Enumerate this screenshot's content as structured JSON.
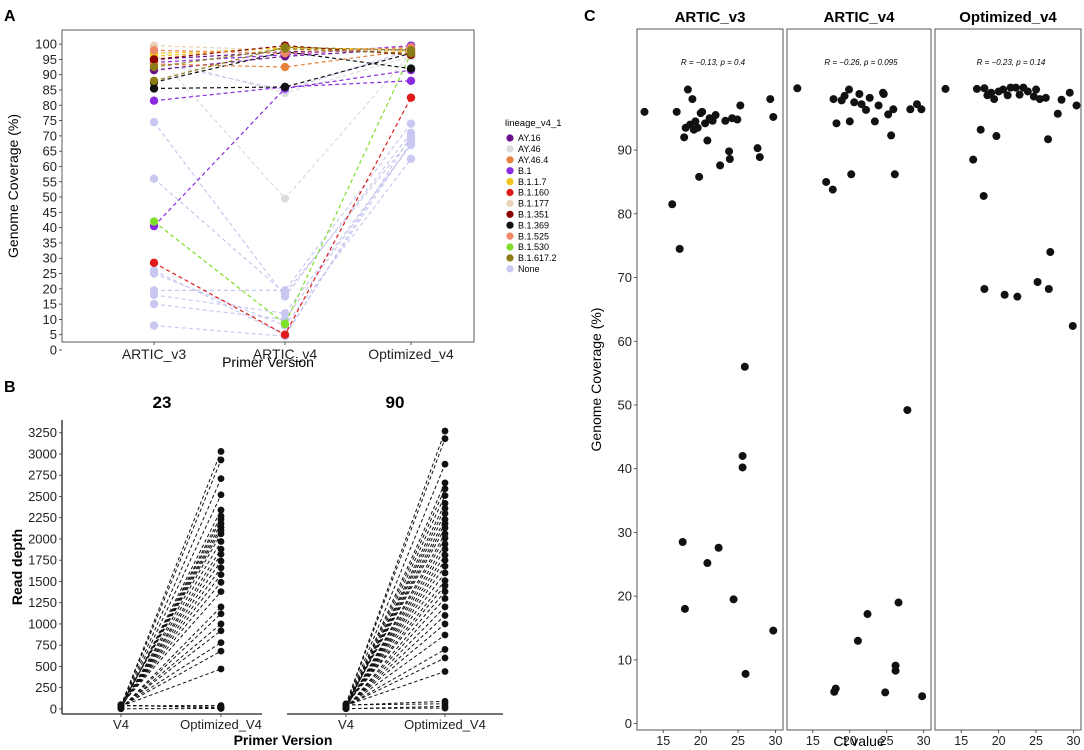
{
  "chart_data": [
    {
      "panel": "A",
      "type": "line",
      "xlabel": "Primer Version",
      "ylabel": "Genome Coverage (%)",
      "categories": [
        "ARTIC_v3",
        "ARTIC_v4",
        "Optimized_v4"
      ],
      "yticks": [
        0,
        5,
        10,
        15,
        20,
        25,
        30,
        35,
        40,
        45,
        50,
        55,
        60,
        65,
        70,
        75,
        80,
        85,
        90,
        95,
        100
      ],
      "ylim": [
        0,
        102
      ],
      "legend_title": "lineage_v4_1",
      "legend": [
        {
          "name": "AY.16",
          "color": "#6a0f8e"
        },
        {
          "name": "AY.46",
          "color": "#dcdcdc"
        },
        {
          "name": "AY.46.4",
          "color": "#e6823c"
        },
        {
          "name": "B.1",
          "color": "#8a2be2"
        },
        {
          "name": "B.1.1.7",
          "color": "#f0c419"
        },
        {
          "name": "B.1.160",
          "color": "#e01a1a"
        },
        {
          "name": "B.1.177",
          "color": "#e8d2b8"
        },
        {
          "name": "B.1.351",
          "color": "#8b0000"
        },
        {
          "name": "B.1.369",
          "color": "#111111"
        },
        {
          "name": "B.1.525",
          "color": "#ee8866"
        },
        {
          "name": "B.1.530",
          "color": "#7ddf2a"
        },
        {
          "name": "B.1.617.2",
          "color": "#8b7d17"
        },
        {
          "name": "None",
          "color": "#c8c8f0"
        }
      ],
      "series": [
        {
          "lineage": "B.1",
          "values": [
            40.5,
            85.5,
            91.5
          ]
        },
        {
          "lineage": "B.1",
          "values": [
            81.5,
            86.0,
            88.0
          ]
        },
        {
          "lineage": "B.1",
          "values": [
            94.0,
            96.5,
            99.5
          ]
        },
        {
          "lineage": "B.1.530",
          "values": [
            42.0,
            8.5,
            97.0
          ]
        },
        {
          "lineage": "B.1.160",
          "values": [
            28.5,
            5.0,
            82.5
          ]
        },
        {
          "lineage": "B.1.369",
          "values": [
            85.5,
            86.0,
            97.0
          ]
        },
        {
          "lineage": "B.1.369",
          "values": [
            87.5,
            97.5,
            92.0
          ]
        },
        {
          "lineage": "AY.16",
          "values": [
            91.5,
            96.0,
            98.5
          ]
        },
        {
          "lineage": "AY.16",
          "values": [
            95.0,
            97.5,
            98.0
          ]
        },
        {
          "lineage": "AY.46.4",
          "values": [
            93.5,
            92.5,
            98.0
          ]
        },
        {
          "lineage": "B.1.1.7",
          "values": [
            97.0,
            98.5,
            98.5
          ]
        },
        {
          "lineage": "B.1.1.7",
          "values": [
            96.0,
            99.0,
            97.5
          ]
        },
        {
          "lineage": "B.1.177",
          "values": [
            99.5,
            98.0,
            98.0
          ]
        },
        {
          "lineage": "B.1.351",
          "values": [
            95.0,
            99.5,
            96.5
          ]
        },
        {
          "lineage": "B.1.525",
          "values": [
            98.0,
            97.0,
            99.0
          ]
        },
        {
          "lineage": "B.1.617.2",
          "values": [
            88.0,
            99.0,
            98.0
          ]
        },
        {
          "lineage": "B.1.617.2",
          "values": [
            92.5,
            98.5,
            97.0
          ]
        },
        {
          "lineage": "AY.46",
          "values": [
            97.5,
            49.5,
            97.0
          ]
        },
        {
          "lineage": "AY.46",
          "values": [
            95.5,
            84.0,
            96.0
          ]
        },
        {
          "lineage": "None",
          "values": [
            74.5,
            17.5,
            71.0
          ]
        },
        {
          "lineage": "None",
          "values": [
            56.0,
            18.5,
            69.0
          ]
        },
        {
          "lineage": "None",
          "values": [
            26.0,
            5.0,
            68.0
          ]
        },
        {
          "lineage": "None",
          "values": [
            25.0,
            8.0,
            62.5
          ]
        },
        {
          "lineage": "None",
          "values": [
            19.5,
            19.5,
            74.0
          ]
        },
        {
          "lineage": "None",
          "values": [
            18.0,
            12.0,
            67.0
          ]
        },
        {
          "lineage": "None",
          "values": [
            15.0,
            10.0,
            67.5
          ]
        },
        {
          "lineage": "None",
          "values": [
            8.0,
            4.5,
            70.0
          ]
        },
        {
          "lineage": "None",
          "values": [
            94.0,
            85.0,
            98.0
          ]
        }
      ]
    },
    {
      "panel": "B",
      "type": "line",
      "facets": [
        "23",
        "90"
      ],
      "categories": [
        "V4",
        "Optimized_V4"
      ],
      "xlabel": "Primer Version",
      "ylabel": "Read depth",
      "yticks": [
        0,
        250,
        500,
        750,
        1000,
        1250,
        1500,
        1750,
        2000,
        2250,
        2500,
        2750,
        3000,
        3250
      ],
      "ylim": [
        -60,
        3400
      ],
      "series_23": {
        "V4": [
          40,
          30,
          20,
          10,
          5,
          15,
          25,
          35,
          45,
          50,
          8,
          12,
          18,
          22,
          28,
          33,
          38,
          42,
          48,
          6,
          9,
          14,
          19,
          24,
          27,
          31,
          36,
          41,
          44,
          2
        ],
        "Optimized_V4": [
          3030,
          2930,
          2710,
          2520,
          2340,
          2270,
          2230,
          2180,
          2140,
          2100,
          2060,
          1970,
          1880,
          1820,
          1740,
          1660,
          1580,
          1490,
          1380,
          1200,
          1120,
          1000,
          920,
          780,
          680,
          470,
          40,
          20,
          10,
          5
        ]
      },
      "series_90": {
        "V4": [
          60,
          50,
          40,
          30,
          20,
          10,
          5,
          15,
          25,
          35,
          45,
          55,
          8,
          12,
          18,
          22,
          28,
          33,
          38,
          42,
          48,
          52,
          6,
          9,
          14,
          19,
          24,
          27,
          31,
          36,
          41,
          44,
          47,
          2,
          4
        ],
        "Optimized_V4": [
          3270,
          3180,
          2880,
          2660,
          2590,
          2510,
          2420,
          2360,
          2300,
          2230,
          2180,
          2130,
          2060,
          2010,
          1940,
          1880,
          1810,
          1750,
          1680,
          1600,
          1510,
          1450,
          1380,
          1300,
          1200,
          1100,
          1000,
          870,
          700,
          600,
          440,
          90,
          60,
          30,
          10
        ]
      }
    },
    {
      "panel": "C",
      "type": "scatter",
      "facets": [
        "ARTIC_v3",
        "ARTIC_v4",
        "Optimized_v4"
      ],
      "xlabel": "Ct value",
      "ylabel": "Genome Coverage (%)",
      "xticks": [
        15,
        20,
        25,
        30
      ],
      "yticks": [
        0,
        10,
        20,
        30,
        40,
        50,
        60,
        70,
        80,
        90
      ],
      "xlim": [
        11.5,
        31
      ],
      "ylim": [
        -1,
        109
      ],
      "annotations": [
        "R = −0.13, p = 0.4",
        "R = −0.26, p = 0.095",
        "R = −0.23, p = 0.14"
      ],
      "points": [
        [
          [
            12.5,
            96
          ],
          [
            16.2,
            81.5
          ],
          [
            16.8,
            96
          ],
          [
            17.2,
            74.5
          ],
          [
            17.6,
            28.5
          ],
          [
            17.9,
            18
          ],
          [
            17.8,
            92
          ],
          [
            18,
            93.5
          ],
          [
            18.3,
            99.5
          ],
          [
            18.6,
            94
          ],
          [
            18.9,
            98
          ],
          [
            19.1,
            93.2
          ],
          [
            19.3,
            94.5
          ],
          [
            19.6,
            93.5
          ],
          [
            19.8,
            85.8
          ],
          [
            20,
            95.8
          ],
          [
            20.2,
            96
          ],
          [
            20.6,
            94.2
          ],
          [
            20.9,
            91.5
          ],
          [
            20.9,
            25.2
          ],
          [
            21.2,
            95
          ],
          [
            21.6,
            94.6
          ],
          [
            22,
            95.5
          ],
          [
            22.4,
            27.6
          ],
          [
            22.6,
            87.6
          ],
          [
            23.3,
            94.6
          ],
          [
            23.8,
            89.8
          ],
          [
            23.9,
            88.6
          ],
          [
            24.2,
            95
          ],
          [
            24.4,
            19.5
          ],
          [
            24.9,
            94.8
          ],
          [
            25.3,
            97
          ],
          [
            25.6,
            42
          ],
          [
            25.6,
            40.2
          ],
          [
            25.9,
            56
          ],
          [
            26,
            7.8
          ],
          [
            27.6,
            90.3
          ],
          [
            27.9,
            88.9
          ],
          [
            29.3,
            98
          ],
          [
            29.7,
            95.2
          ],
          [
            29.7,
            14.6
          ]
        ],
        [
          [
            12.9,
            99.7
          ],
          [
            16.8,
            85
          ],
          [
            17.7,
            83.8
          ],
          [
            17.9,
            5
          ],
          [
            18.1,
            5.5
          ],
          [
            17.8,
            98
          ],
          [
            18.2,
            94.2
          ],
          [
            18.9,
            97.8
          ],
          [
            19.3,
            98.5
          ],
          [
            19.9,
            99.5
          ],
          [
            20.2,
            86.2
          ],
          [
            20,
            94.5
          ],
          [
            20.6,
            97.5
          ],
          [
            21.1,
            13
          ],
          [
            21.3,
            98.8
          ],
          [
            21.6,
            97.2
          ],
          [
            22.2,
            96.3
          ],
          [
            22.4,
            17.2
          ],
          [
            22.7,
            98.2
          ],
          [
            23.4,
            94.5
          ],
          [
            23.9,
            97
          ],
          [
            24.5,
            99
          ],
          [
            24.6,
            98.8
          ],
          [
            24.8,
            4.9
          ],
          [
            25.2,
            95.6
          ],
          [
            25.6,
            92.3
          ],
          [
            25.9,
            96.4
          ],
          [
            26.1,
            86.2
          ],
          [
            26.2,
            9.1
          ],
          [
            26.2,
            8.3
          ],
          [
            26.6,
            19
          ],
          [
            27.8,
            49.2
          ],
          [
            28.2,
            96.4
          ],
          [
            29.1,
            97.2
          ],
          [
            29.7,
            96.4
          ],
          [
            29.8,
            4.3
          ]
        ],
        [
          [
            12.9,
            99.6
          ],
          [
            16.6,
            88.5
          ],
          [
            17.1,
            99.6
          ],
          [
            17.6,
            93.2
          ],
          [
            18,
            82.8
          ],
          [
            18.1,
            68.2
          ],
          [
            18.1,
            99.7
          ],
          [
            18.5,
            98.6
          ],
          [
            19,
            99
          ],
          [
            19.4,
            98
          ],
          [
            19.7,
            92.2
          ],
          [
            20,
            99.2
          ],
          [
            20.6,
            99.5
          ],
          [
            20.8,
            67.3
          ],
          [
            21.2,
            98.6
          ],
          [
            21.6,
            99.8
          ],
          [
            22.3,
            99.8
          ],
          [
            22.5,
            67
          ],
          [
            22.8,
            98.7
          ],
          [
            23.3,
            99.8
          ],
          [
            23.9,
            99.2
          ],
          [
            24.7,
            98.4
          ],
          [
            25,
            99.5
          ],
          [
            25.2,
            69.3
          ],
          [
            25.5,
            98
          ],
          [
            26.3,
            98.2
          ],
          [
            26.6,
            91.7
          ],
          [
            26.7,
            68.2
          ],
          [
            26.9,
            74
          ],
          [
            27.9,
            95.7
          ],
          [
            28.4,
            97.9
          ],
          [
            29.5,
            99
          ],
          [
            29.9,
            62.4
          ],
          [
            30.4,
            97
          ]
        ]
      ]
    }
  ],
  "panel_labels": {
    "a": "A",
    "b": "B",
    "c": "C"
  }
}
